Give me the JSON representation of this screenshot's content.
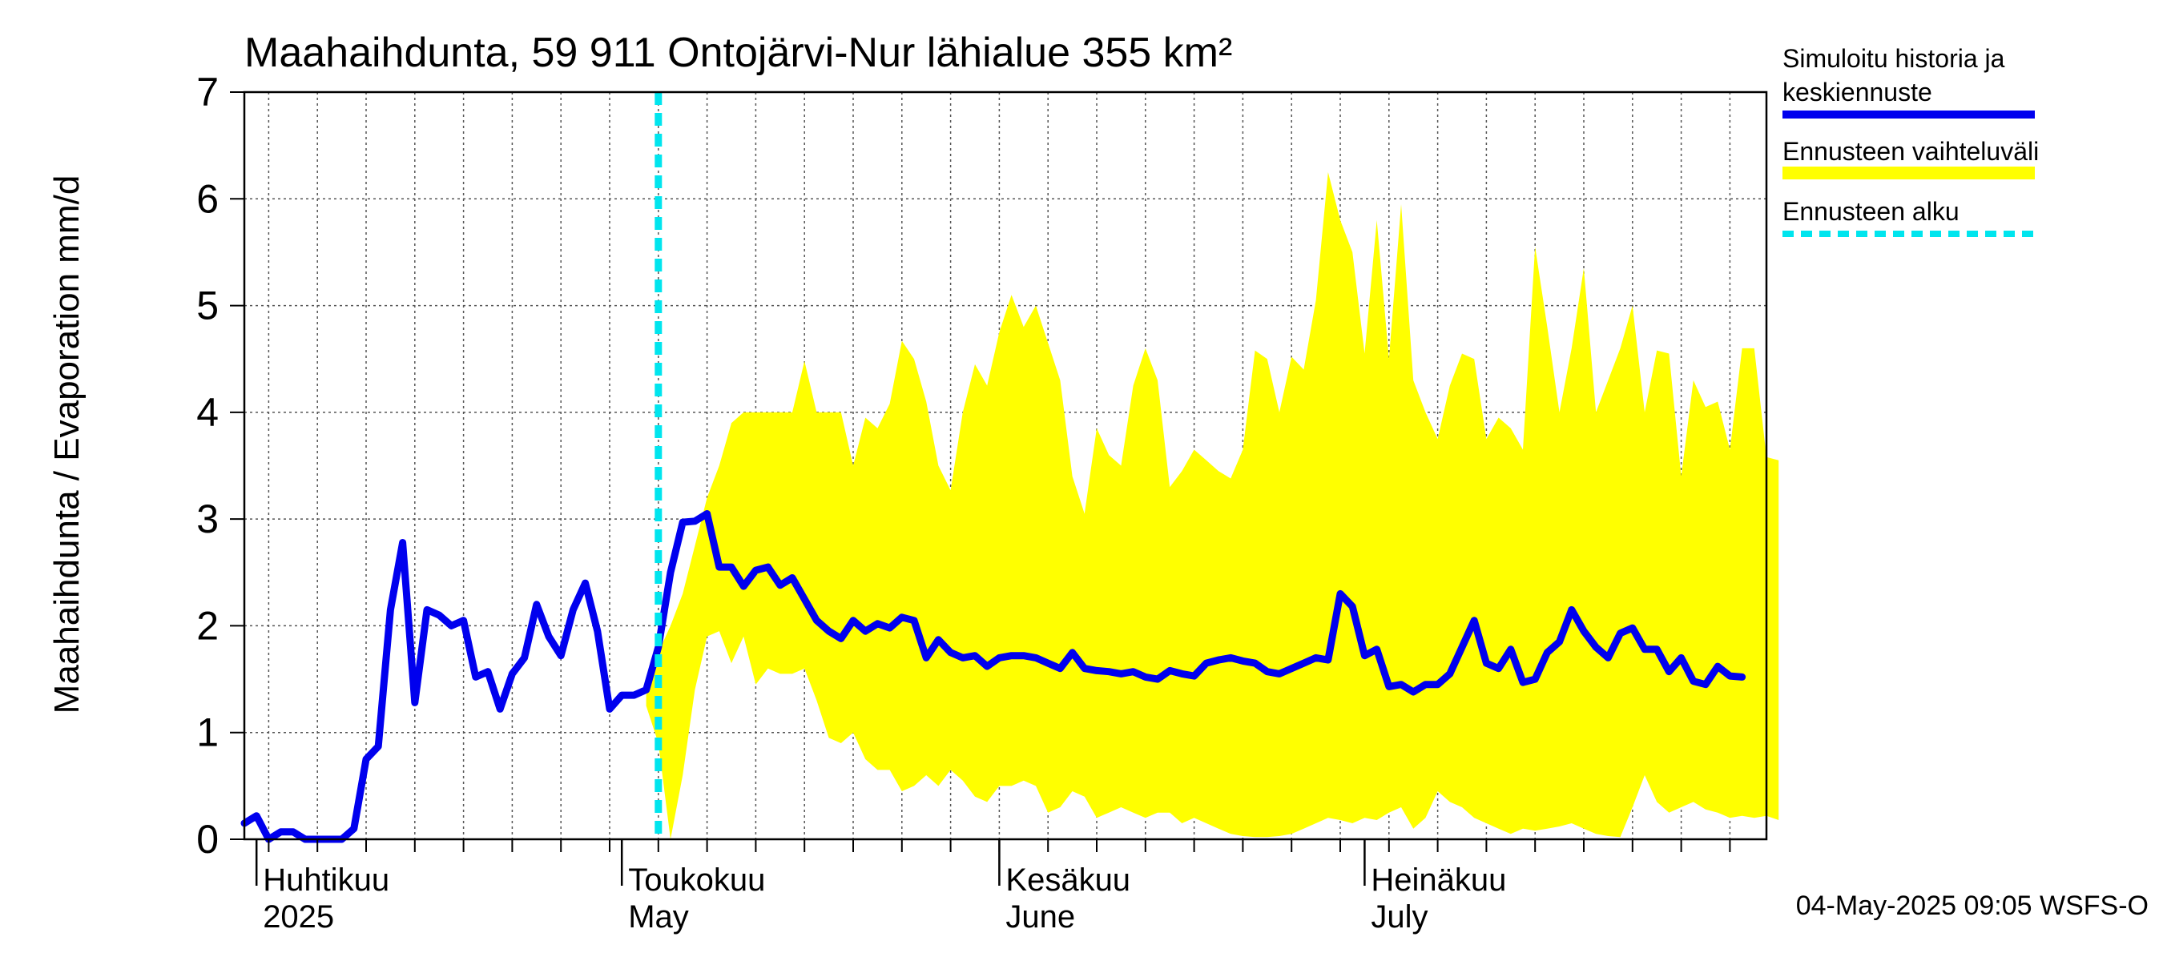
{
  "chart_data": {
    "type": "area",
    "title": "Maahaihdunta, 59 911 Ontojärvi-Nur lähialue 355 km²",
    "ylabel": "Maahaihdunta / Evaporation   mm/d",
    "ylim": [
      0,
      7
    ],
    "yticks": [
      "0",
      "1",
      "2",
      "3",
      "4",
      "5",
      "6",
      "7"
    ],
    "grid": true,
    "legend_position": "right",
    "footer": "04-May-2025 09:05 WSFS-O",
    "x_start": "2025-03-31",
    "x_end": "2025-08-03",
    "forecast_start": "2025-05-04",
    "month_labels": [
      {
        "date": "2025-04-01",
        "line1": "Huhtikuu",
        "line2": "2025"
      },
      {
        "date": "2025-05-01",
        "line1": "Toukokuu",
        "line2": "May"
      },
      {
        "date": "2025-06-01",
        "line1": "Kesäkuu",
        "line2": "June"
      },
      {
        "date": "2025-07-01",
        "line1": "Heinäkuu",
        "line2": "July"
      }
    ],
    "series": [
      {
        "name": "Simuloitu historia ja keskiennuste",
        "color": "#0000ee",
        "values": [
          0.15,
          0.22,
          0.0,
          0.07,
          0.07,
          0.0,
          0.0,
          0.0,
          0.0,
          0.1,
          0.75,
          0.87,
          2.15,
          2.78,
          1.28,
          2.15,
          2.1,
          2.0,
          2.05,
          1.52,
          1.57,
          1.22,
          1.55,
          1.7,
          2.2,
          1.9,
          1.72,
          2.15,
          2.4,
          1.95,
          1.22,
          1.35,
          1.35,
          1.4,
          1.8,
          2.5,
          2.97,
          2.98,
          3.05,
          2.55,
          2.55,
          2.37,
          2.52,
          2.55,
          2.38,
          2.45,
          2.25,
          2.05,
          1.95,
          1.88,
          2.05,
          1.95,
          2.02,
          1.98,
          2.08,
          2.05,
          1.7,
          1.87,
          1.75,
          1.7,
          1.72,
          1.62,
          1.7,
          1.72,
          1.72,
          1.7,
          1.65,
          1.6,
          1.75,
          1.6,
          1.58,
          1.57,
          1.55,
          1.57,
          1.52,
          1.5,
          1.58,
          1.55,
          1.53,
          1.65,
          1.68,
          1.7,
          1.67,
          1.65,
          1.57,
          1.55,
          1.6,
          1.65,
          1.7,
          1.68,
          2.3,
          2.18,
          1.72,
          1.78,
          1.43,
          1.45,
          1.38,
          1.45,
          1.45,
          1.55,
          1.8,
          2.05,
          1.65,
          1.6,
          1.78,
          1.47,
          1.5,
          1.75,
          1.85,
          2.15,
          1.95,
          1.8,
          1.7,
          1.93,
          1.98,
          1.78,
          1.78,
          1.57,
          1.7,
          1.48,
          1.45,
          1.62,
          1.53,
          1.52
        ]
      },
      {
        "name": "Ennusteen vaihteluväli",
        "color": "#ffff00",
        "x_offset": 33,
        "upper": [
          1.35,
          1.75,
          2.0,
          2.3,
          2.75,
          3.2,
          3.5,
          3.9,
          4.0,
          4.0,
          4.0,
          4.0,
          4.0,
          4.48,
          4.0,
          4.0,
          4.0,
          3.5,
          3.95,
          3.85,
          4.08,
          4.67,
          4.5,
          4.1,
          3.5,
          3.27,
          4.0,
          4.45,
          4.25,
          4.75,
          5.1,
          4.8,
          5.0,
          4.65,
          4.3,
          3.4,
          3.05,
          3.85,
          3.6,
          3.5,
          4.25,
          4.6,
          4.3,
          3.3,
          3.45,
          3.65,
          3.55,
          3.45,
          3.38,
          3.65,
          4.58,
          4.5,
          4.0,
          4.52,
          4.4,
          5.05,
          6.25,
          5.8,
          5.5,
          4.55,
          5.8,
          4.5,
          5.95,
          4.3,
          4.0,
          3.75,
          4.25,
          4.55,
          4.5,
          3.75,
          3.95,
          3.85,
          3.65,
          5.55,
          4.8,
          4.0,
          4.6,
          5.35,
          4.0,
          4.3,
          4.6,
          5.0,
          4.0,
          4.58,
          4.55,
          3.4,
          4.3,
          4.05,
          4.1,
          3.65,
          4.6,
          4.6,
          3.58,
          3.55
        ],
        "lower": [
          1.25,
          0.9,
          0.0,
          0.6,
          1.4,
          1.9,
          1.95,
          1.65,
          1.9,
          1.45,
          1.6,
          1.55,
          1.55,
          1.6,
          1.3,
          0.95,
          0.9,
          1.0,
          0.75,
          0.65,
          0.65,
          0.45,
          0.5,
          0.6,
          0.5,
          0.65,
          0.55,
          0.4,
          0.35,
          0.5,
          0.5,
          0.55,
          0.5,
          0.25,
          0.3,
          0.45,
          0.4,
          0.2,
          0.25,
          0.3,
          0.25,
          0.2,
          0.25,
          0.25,
          0.15,
          0.2,
          0.15,
          0.1,
          0.05,
          0.03,
          0.02,
          0.02,
          0.03,
          0.05,
          0.1,
          0.15,
          0.2,
          0.18,
          0.15,
          0.2,
          0.18,
          0.25,
          0.3,
          0.1,
          0.2,
          0.45,
          0.35,
          0.3,
          0.2,
          0.15,
          0.1,
          0.05,
          0.1,
          0.08,
          0.1,
          0.12,
          0.15,
          0.1,
          0.05,
          0.03,
          0.02,
          0.3,
          0.6,
          0.35,
          0.25,
          0.3,
          0.35,
          0.28,
          0.25,
          0.2,
          0.22,
          0.2,
          0.22,
          0.18
        ]
      },
      {
        "name": "Ennusteen alku",
        "color": "#00e5ee",
        "style": "dashed"
      }
    ]
  },
  "legend": {
    "simulated_line1": "Simuloitu historia ja",
    "simulated_line2": "keskiennuste",
    "range": "Ennusteen vaihteluväli",
    "forecast_start": "Ennusteen alku"
  }
}
